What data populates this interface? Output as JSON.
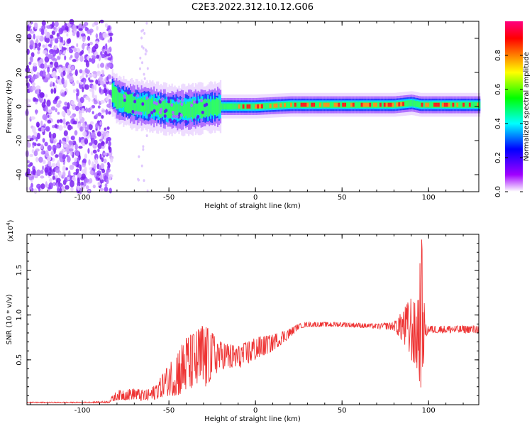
{
  "title": "C2E3.2022.312.10.12.G06",
  "chart_data": [
    {
      "type": "heatmap",
      "xlabel": "Height of straight line (km)",
      "ylabel": "Frequency (Hz)",
      "xlim": [
        -132,
        129
      ],
      "ylim": [
        -50,
        50
      ],
      "xticks": [
        "-100",
        "-50",
        "0",
        "50",
        "100"
      ],
      "xtick_values": [
        -100,
        -50,
        0,
        50,
        100
      ],
      "yticks": [
        "-40",
        "-20",
        "0",
        "20",
        "40"
      ],
      "ytick_values": [
        -40,
        -20,
        0,
        20,
        40
      ],
      "colorbar": {
        "label": "Normalized spectral amplitude",
        "range": [
          0,
          1
        ],
        "ticks": [
          "0.0",
          "0.2",
          "0.4",
          "0.6",
          "0.8"
        ],
        "tick_values": [
          0.0,
          0.2,
          0.4,
          0.6,
          0.8
        ],
        "colors": [
          "#ffffff",
          "#a000ff",
          "#0000ff",
          "#00ffff",
          "#00ff00",
          "#ffff00",
          "#ff8000",
          "#ff0000",
          "#ff0080"
        ]
      },
      "regions": {
        "noise_x_range": [
          -132,
          -83
        ],
        "signal_centerline_hz": [
          [
            -83,
            8
          ],
          [
            -80,
            4
          ],
          [
            -70,
            1
          ],
          [
            -60,
            0
          ],
          [
            -50,
            -2
          ],
          [
            -40,
            -2
          ],
          [
            -30,
            -1
          ],
          [
            -20,
            0
          ],
          [
            -10,
            0
          ],
          [
            0,
            0
          ],
          [
            20,
            1
          ],
          [
            40,
            1
          ],
          [
            60,
            1
          ],
          [
            80,
            1
          ],
          [
            90,
            2
          ],
          [
            95,
            1
          ],
          [
            100,
            1
          ],
          [
            129,
            1
          ]
        ]
      }
    },
    {
      "type": "line",
      "xlabel": "Height of straight line (km)",
      "ylabel": "SNR (10 * v/v)",
      "yscale_label": "(x10",
      "yscale_exp": "4",
      "yscale_close": ")",
      "xlim": [
        -132,
        129
      ],
      "ylim": [
        0,
        1.9
      ],
      "xticks": [
        "-100",
        "-50",
        "0",
        "50",
        "100"
      ],
      "xtick_values": [
        -100,
        -50,
        0,
        50,
        100
      ],
      "yticks": [
        "0.5",
        "1.0",
        "1.5"
      ],
      "ytick_values": [
        0.5,
        1.0,
        1.5
      ],
      "color": "#ee3333",
      "envelope": [
        [
          -132,
          0.02,
          0.03
        ],
        [
          -100,
          0.02,
          0.03
        ],
        [
          -85,
          0.02,
          0.04
        ],
        [
          -80,
          0.05,
          0.16
        ],
        [
          -70,
          0.06,
          0.18
        ],
        [
          -65,
          0.04,
          0.16
        ],
        [
          -60,
          0.04,
          0.18
        ],
        [
          -55,
          0.08,
          0.3
        ],
        [
          -50,
          0.1,
          0.45
        ],
        [
          -45,
          0.1,
          0.6
        ],
        [
          -40,
          0.15,
          0.75
        ],
        [
          -35,
          0.2,
          0.8
        ],
        [
          -30,
          0.15,
          0.9
        ],
        [
          -25,
          0.3,
          0.8
        ],
        [
          -20,
          0.4,
          0.7
        ],
        [
          -10,
          0.4,
          0.65
        ],
        [
          -5,
          0.45,
          0.7
        ],
        [
          0,
          0.5,
          0.75
        ],
        [
          10,
          0.6,
          0.78
        ],
        [
          20,
          0.75,
          0.85
        ],
        [
          25,
          0.85,
          0.9
        ],
        [
          30,
          0.87,
          0.92
        ],
        [
          50,
          0.87,
          0.92
        ],
        [
          70,
          0.85,
          0.9
        ],
        [
          80,
          0.83,
          0.92
        ],
        [
          85,
          0.7,
          1.05
        ],
        [
          90,
          0.5,
          1.2
        ],
        [
          93,
          0.4,
          1.1
        ],
        [
          96,
          0.15,
          1.85
        ],
        [
          98,
          0.75,
          0.9
        ],
        [
          100,
          0.8,
          0.88
        ],
        [
          110,
          0.8,
          0.88
        ],
        [
          129,
          0.8,
          0.88
        ]
      ]
    }
  ]
}
